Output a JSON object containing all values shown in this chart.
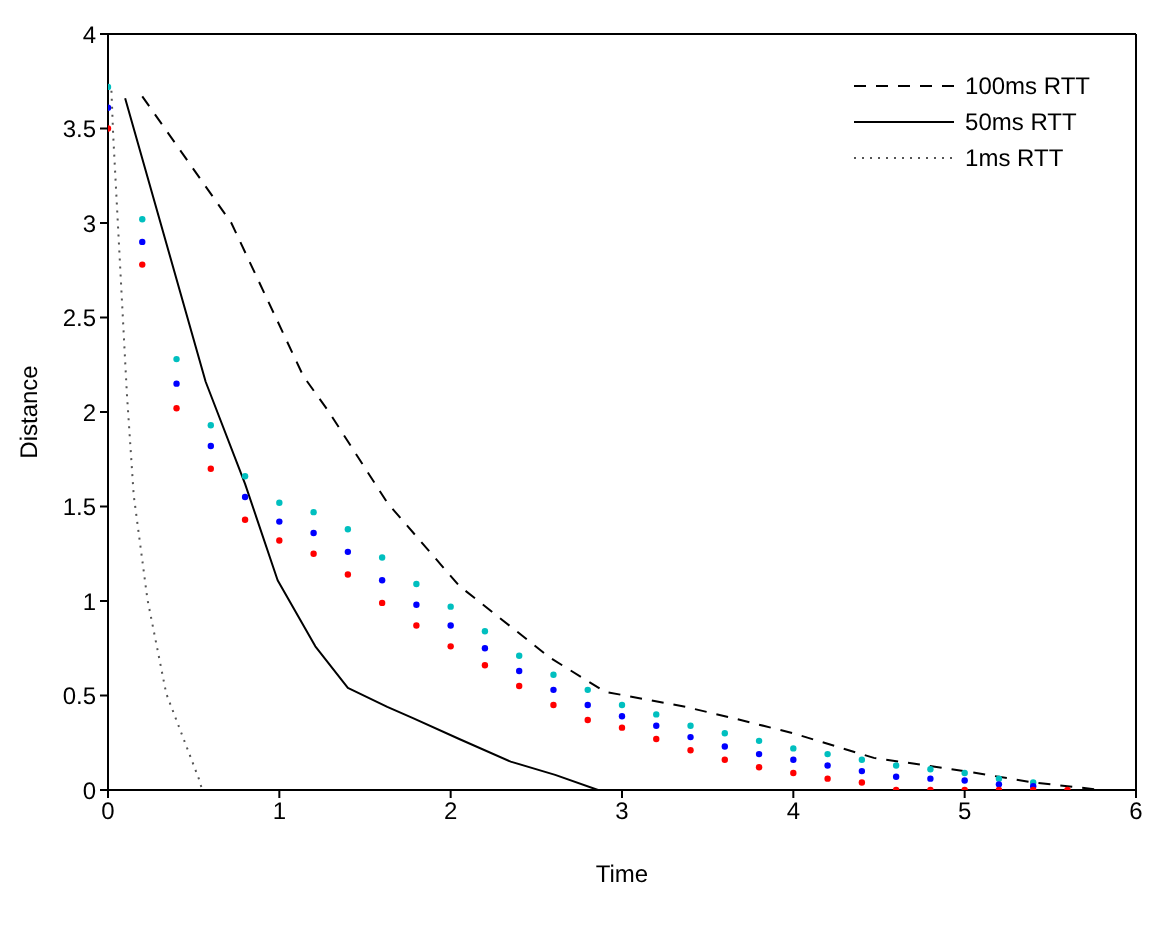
{
  "chart_data": {
    "type": "line",
    "xlabel": "Time",
    "ylabel": "Distance",
    "xlim": [
      0,
      6
    ],
    "ylim": [
      0,
      4
    ],
    "xticks": [
      0,
      1,
      2,
      3,
      4,
      5,
      6
    ],
    "yticks": [
      0,
      0.5,
      1,
      1.5,
      2,
      2.5,
      3,
      3.5,
      4
    ],
    "legend": "top right",
    "series": [
      {
        "name": "100ms RTT",
        "color": "#000000",
        "line_style": "dashed",
        "marker": "none",
        "x": [
          0.2,
          0.72,
          1.14,
          1.29,
          1.63,
          2.05,
          2.58,
          2.9,
          3.37,
          3.65,
          4.0,
          4.47,
          5.0,
          5.4,
          5.8
        ],
        "values": [
          3.67,
          3.0,
          2.19,
          2.0,
          1.52,
          1.08,
          0.7,
          0.52,
          0.44,
          0.38,
          0.3,
          0.17,
          0.1,
          0.04,
          0
        ]
      },
      {
        "name": "50ms RTT",
        "color": "#000000",
        "line_style": "solid",
        "marker": "none",
        "x": [
          0.1,
          0.57,
          0.8,
          0.99,
          1.21,
          1.4,
          1.63,
          1.78,
          2.05,
          2.35,
          2.61,
          2.86
        ],
        "values": [
          3.66,
          2.16,
          1.62,
          1.11,
          0.76,
          0.54,
          0.44,
          0.38,
          0.27,
          0.15,
          0.08,
          0
        ]
      },
      {
        "name": "1ms RTT",
        "color": "#555555",
        "line_style": "dotted",
        "marker": "none",
        "x": [
          0.02,
          0.03,
          0.11,
          0.15,
          0.23,
          0.34,
          0.53,
          0.55
        ],
        "values": [
          3.7,
          3.47,
          2.1,
          1.56,
          1.01,
          0.51,
          0.06,
          0
        ]
      },
      {
        "type": "scatter",
        "color": "#00bfbf",
        "marker": "circle",
        "x": [
          0,
          0.2,
          0.4,
          0.6,
          0.8,
          1.0,
          1.2,
          1.4,
          1.6,
          1.8,
          2.0,
          2.2,
          2.4,
          2.6,
          2.8,
          3.0,
          3.2,
          3.4,
          3.6,
          3.8,
          4.0,
          4.2,
          4.4,
          4.6,
          4.8,
          5.0,
          5.2,
          5.4
        ],
        "values": [
          3.72,
          3.02,
          2.28,
          1.93,
          1.66,
          1.52,
          1.47,
          1.38,
          1.23,
          1.09,
          0.97,
          0.84,
          0.71,
          0.61,
          0.53,
          0.45,
          0.4,
          0.34,
          0.3,
          0.26,
          0.22,
          0.19,
          0.16,
          0.13,
          0.11,
          0.09,
          0.06,
          0.04
        ]
      },
      {
        "type": "scatter",
        "color": "#0000ff",
        "marker": "circle",
        "x": [
          0,
          0.2,
          0.4,
          0.6,
          0.8,
          1.0,
          1.2,
          1.4,
          1.6,
          1.8,
          2.0,
          2.2,
          2.4,
          2.6,
          2.8,
          3.0,
          3.2,
          3.4,
          3.6,
          3.8,
          4.0,
          4.2,
          4.4,
          4.6,
          4.8,
          5.0,
          5.2,
          5.4
        ],
        "values": [
          3.61,
          2.9,
          2.15,
          1.82,
          1.55,
          1.42,
          1.36,
          1.26,
          1.11,
          0.98,
          0.87,
          0.75,
          0.63,
          0.53,
          0.45,
          0.39,
          0.34,
          0.28,
          0.23,
          0.19,
          0.16,
          0.13,
          0.1,
          0.07,
          0.06,
          0.05,
          0.03,
          0.02
        ]
      },
      {
        "type": "scatter",
        "color": "#ff0000",
        "marker": "circle",
        "x": [
          0,
          0.2,
          0.4,
          0.6,
          0.8,
          1.0,
          1.2,
          1.4,
          1.6,
          1.8,
          2.0,
          2.2,
          2.4,
          2.6,
          2.8,
          3.0,
          3.2,
          3.4,
          3.6,
          3.8,
          4.0,
          4.2,
          4.4,
          4.6,
          4.8,
          5.0,
          5.2,
          5.4,
          5.6
        ],
        "values": [
          3.5,
          2.78,
          2.02,
          1.7,
          1.43,
          1.32,
          1.25,
          1.14,
          0.99,
          0.87,
          0.76,
          0.66,
          0.55,
          0.45,
          0.37,
          0.33,
          0.27,
          0.21,
          0.16,
          0.12,
          0.09,
          0.06,
          0.04,
          0,
          0,
          0,
          0,
          0,
          0
        ]
      }
    ]
  }
}
